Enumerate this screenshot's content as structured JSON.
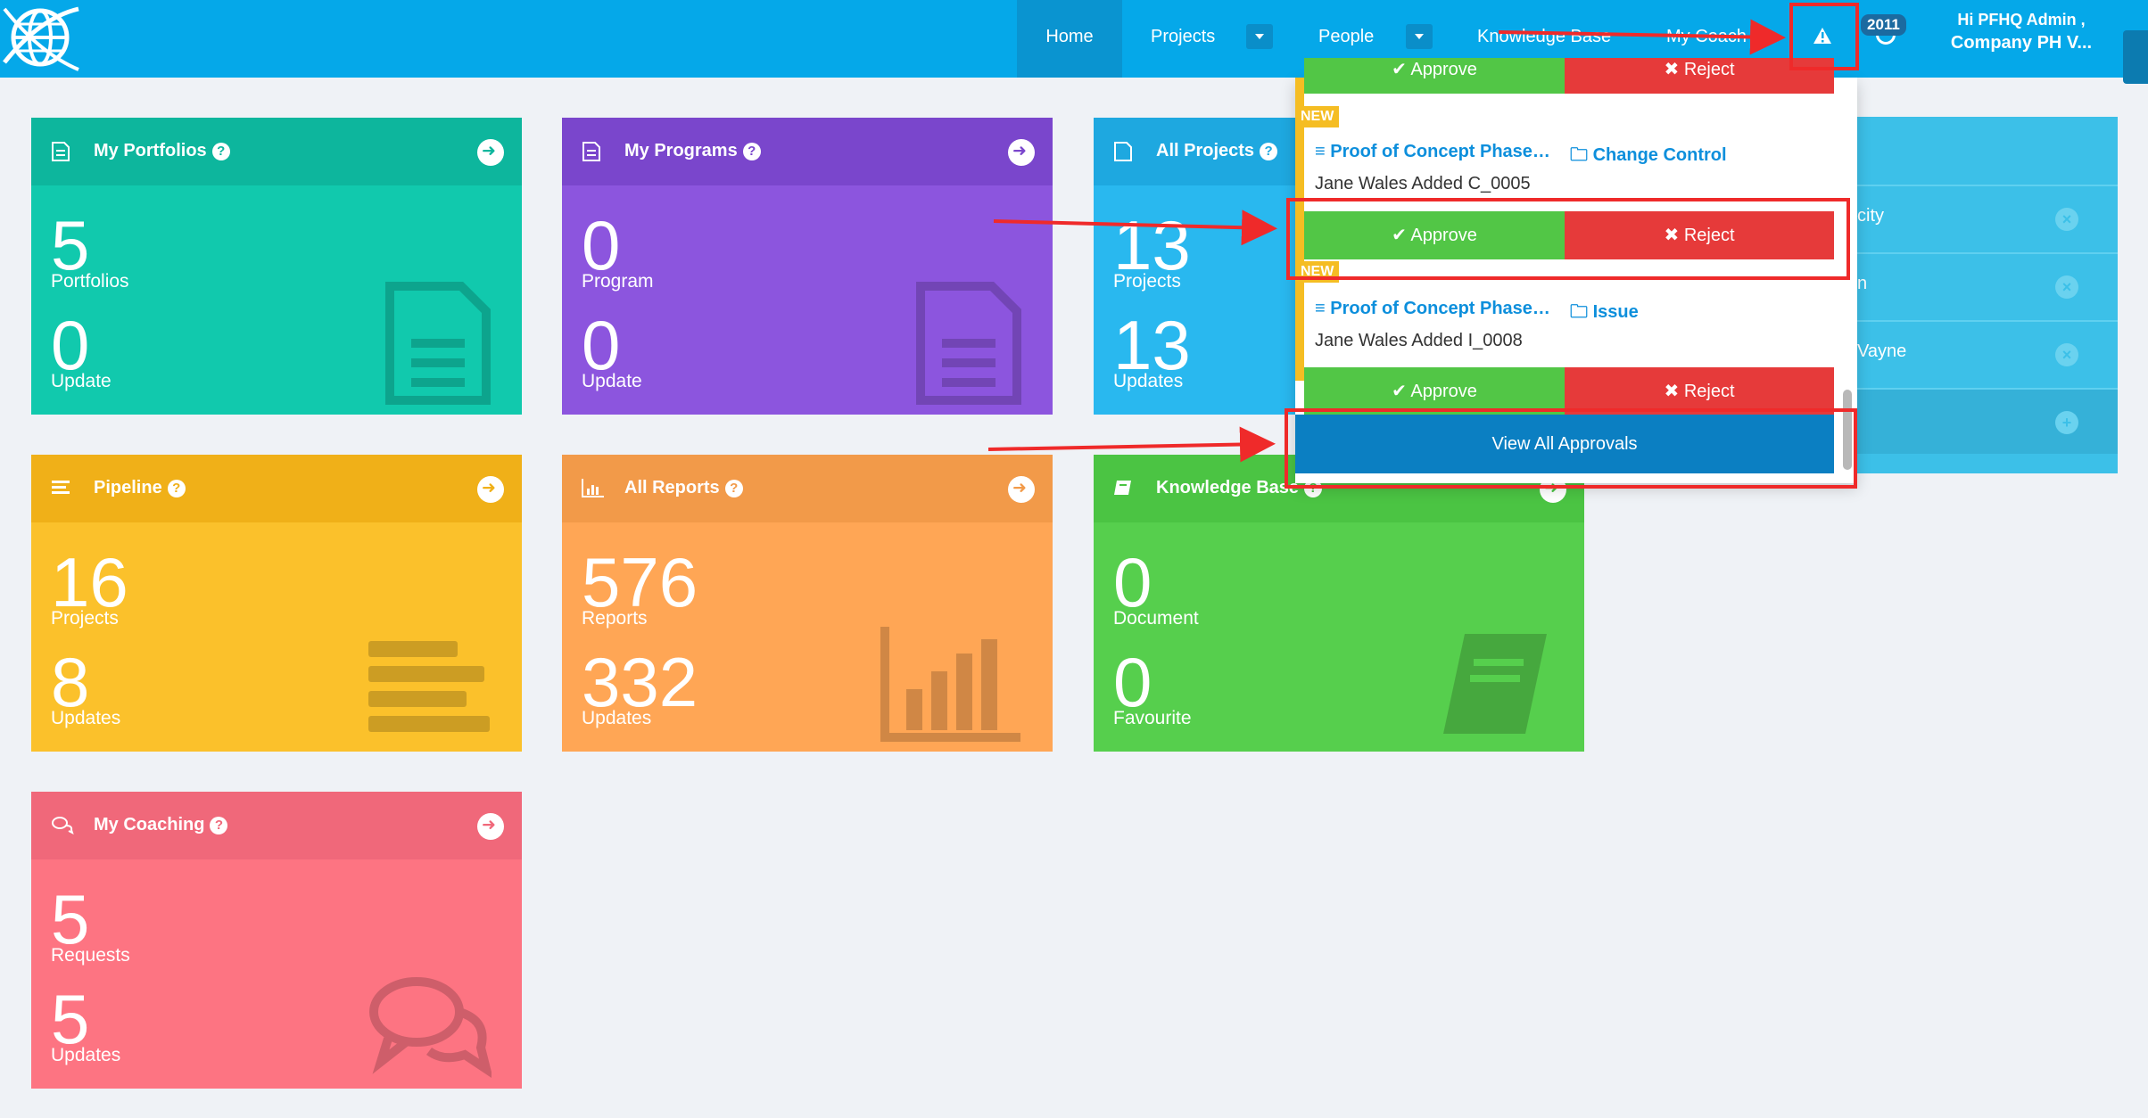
{
  "nav": {
    "items": [
      "Home",
      "Projects",
      "People",
      "Knowledge Base",
      "My Coach"
    ],
    "badge": "2011",
    "user_greeting": "Hi PFHQ Admin ,",
    "user_company": "Company PH V..."
  },
  "tiles": [
    {
      "title": "My Portfolios",
      "n1": "5",
      "l1": "Portfolios",
      "n2": "0",
      "l2": "Update",
      "color": "#11c9ad",
      "head": "#0db69d"
    },
    {
      "title": "My Programs",
      "n1": "0",
      "l1": "Program",
      "n2": "0",
      "l2": "Update",
      "color": "#8c55de",
      "head": "#7a46cc"
    },
    {
      "title": "All Projects",
      "n1": "13",
      "l1": "Projects",
      "n2": "13",
      "l2": "Updates",
      "color": "#29b8ef",
      "head": "#1ea8e0"
    },
    {
      "title": "Pipeline",
      "n1": "16",
      "l1": "Projects",
      "n2": "8",
      "l2": "Updates",
      "color": "#fbc12b",
      "head": "#f0b018"
    },
    {
      "title": "All Reports",
      "n1": "576",
      "l1": "Reports",
      "n2": "332",
      "l2": "Updates",
      "color": "#ffa655",
      "head": "#f29a49"
    },
    {
      "title": "Knowledge Base",
      "n1": "0",
      "l1": "Document",
      "n2": "0",
      "l2": "Favourite",
      "color": "#56cf4d",
      "head": "#4bc443"
    },
    {
      "title": "My Coaching",
      "n1": "5",
      "l1": "Requests",
      "n2": "5",
      "l2": "Updates",
      "color": "#fd7482",
      "head": "#f0687a"
    }
  ],
  "approvals": {
    "approve_label": "Approve",
    "reject_label": "Reject",
    "new_label": "NEW",
    "items": [
      {
        "project": "Proof of Concept Phase…",
        "type": "Change Control",
        "desc": "Jane Wales Added C_0005"
      },
      {
        "project": "Proof of Concept Phase…",
        "type": "Issue",
        "desc": "Jane Wales Added I_0008"
      }
    ],
    "view_all": "View All Approvals"
  },
  "people_panel": {
    "rows": [
      "city",
      "n",
      "Vayne",
      ""
    ]
  },
  "colors": {
    "nav": "#05a8e9",
    "annotation": "#ef2a2a",
    "approve": "#52c646",
    "reject": "#e63a3a"
  }
}
